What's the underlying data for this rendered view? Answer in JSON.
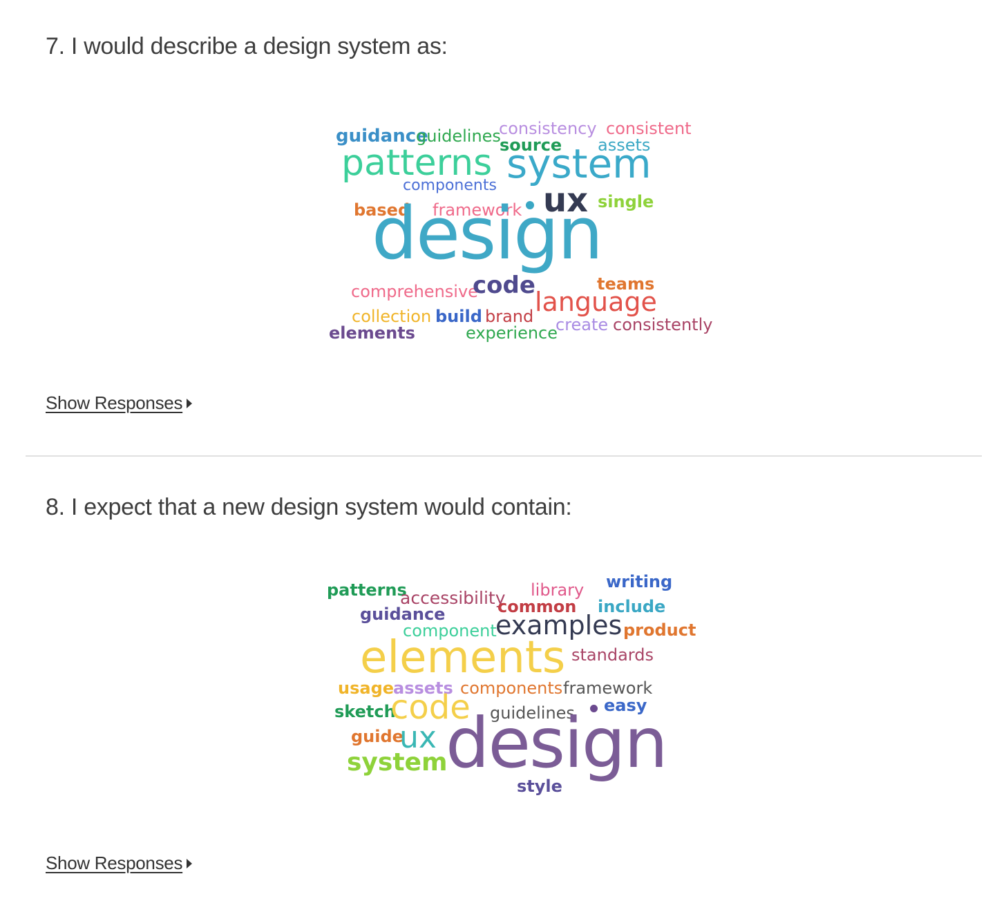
{
  "questions": [
    {
      "title": "7. I would describe a design system as:",
      "show_responses_label": "Show Responses",
      "cloud_words": [
        {
          "text": "guidance",
          "color": "#3a8fc7"
        },
        {
          "text": "guidelines",
          "color": "#2fa84f"
        },
        {
          "text": "consistency",
          "color": "#b88ee0"
        },
        {
          "text": "consistent",
          "color": "#ef6a8a"
        },
        {
          "text": "source",
          "color": "#1f9b56"
        },
        {
          "text": "assets",
          "color": "#3aa7c4"
        },
        {
          "text": "patterns",
          "color": "#3ccf9a"
        },
        {
          "text": "system",
          "color": "#3aa9c9"
        },
        {
          "text": "components",
          "color": "#4b6fd6"
        },
        {
          "text": "ux",
          "color": "#343a52"
        },
        {
          "text": "single",
          "color": "#8ed23a"
        },
        {
          "text": "based",
          "color": "#e0762f"
        },
        {
          "text": "framework",
          "color": "#ef6a8a"
        },
        {
          "text": "design",
          "color": "#3fa8c6"
        },
        {
          "text": "teams",
          "color": "#e0762f"
        },
        {
          "text": "comprehensive",
          "color": "#ef6a8a"
        },
        {
          "text": "code",
          "color": "#4f4a8e"
        },
        {
          "text": "language",
          "color": "#e2524a"
        },
        {
          "text": "collection",
          "color": "#f0b429"
        },
        {
          "text": "build",
          "color": "#3a67c8"
        },
        {
          "text": "brand",
          "color": "#c23d44"
        },
        {
          "text": "create",
          "color": "#a98be3"
        },
        {
          "text": "consistently",
          "color": "#a94466"
        },
        {
          "text": "elements",
          "color": "#6b4a8f"
        },
        {
          "text": "experience",
          "color": "#2fa84f"
        }
      ],
      "dot_color": "#3aa7c4"
    },
    {
      "title": "8. I expect that a new design system would contain:",
      "show_responses_label": "Show Responses",
      "cloud_words": [
        {
          "text": "patterns",
          "color": "#1f9b56"
        },
        {
          "text": "accessibility",
          "color": "#a94466"
        },
        {
          "text": "library",
          "color": "#e0588a"
        },
        {
          "text": "writing",
          "color": "#3a67c8"
        },
        {
          "text": "guidance",
          "color": "#5a4f9a"
        },
        {
          "text": "common",
          "color": "#c23d44"
        },
        {
          "text": "include",
          "color": "#3aa7c4"
        },
        {
          "text": "component",
          "color": "#3ccf9a"
        },
        {
          "text": "examples",
          "color": "#343a52"
        },
        {
          "text": "product",
          "color": "#e0762f"
        },
        {
          "text": "elements",
          "color": "#f4cf4a"
        },
        {
          "text": "standards",
          "color": "#a94466"
        },
        {
          "text": "usage",
          "color": "#f0b429"
        },
        {
          "text": "assets",
          "color": "#b88ee0"
        },
        {
          "text": "components",
          "color": "#e0762f"
        },
        {
          "text": "framework",
          "color": "#555555"
        },
        {
          "text": "sketch",
          "color": "#1f9b56"
        },
        {
          "text": "code",
          "color": "#f4cf4a"
        },
        {
          "text": "guidelines",
          "color": "#555555"
        },
        {
          "text": "easy",
          "color": "#3a67c8"
        },
        {
          "text": "guide",
          "color": "#e0762f"
        },
        {
          "text": "ux",
          "color": "#3ab7b4"
        },
        {
          "text": "design",
          "color": "#7b5c96"
        },
        {
          "text": "system",
          "color": "#8ed23a"
        },
        {
          "text": "style",
          "color": "#5a4f9a"
        }
      ],
      "dot_color": "#6b4a8f"
    }
  ]
}
